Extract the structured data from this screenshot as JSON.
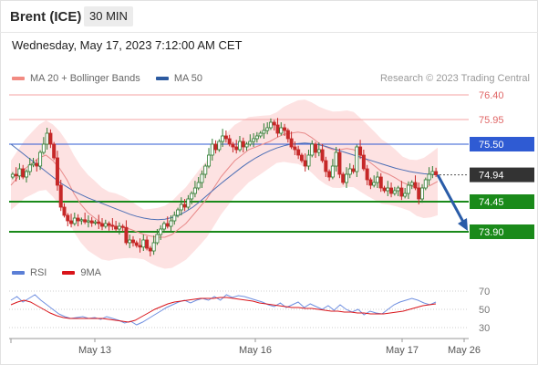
{
  "header": {
    "symbol": "Brent (ICE)",
    "timeframe": "30 MIN",
    "datetime": "Wednesday, May 17, 2023 7:12:00 AM CET"
  },
  "legend": {
    "items": [
      {
        "label": "MA 20 + Bollinger Bands",
        "color": "#f28b82"
      },
      {
        "label": "MA 50",
        "color": "#2c5aa0"
      }
    ],
    "credit": "Research © 2023 Trading Central"
  },
  "rsi_legend": {
    "items": [
      {
        "label": "RSI",
        "color": "#5b7fd6"
      },
      {
        "label": "9MA",
        "color": "#d9141a"
      }
    ]
  },
  "colors": {
    "up": "#2e7d32",
    "down": "#c62828",
    "band": "#fde2e2",
    "resistance": "#f4a3a3",
    "pivot": "#2f5bd3",
    "support": "#1a8a1a",
    "last": "#333333",
    "arrow": "#2a5ca8"
  },
  "chart_data": [
    {
      "type": "candlestick",
      "title": "Brent (ICE)",
      "interval": "30 MIN",
      "y_scale": {
        "min": 73.6,
        "max": 76.55
      },
      "x_ticks": [
        "May 13",
        "May 16",
        "May 17",
        "May 26"
      ],
      "levels": [
        {
          "value": 76.4,
          "label": "76.40",
          "kind": "resistance"
        },
        {
          "value": 75.95,
          "label": "75.95",
          "kind": "resistance"
        },
        {
          "value": 75.5,
          "label": "75.50",
          "kind": "pivot"
        },
        {
          "value": 74.94,
          "label": "74.94",
          "kind": "last"
        },
        {
          "value": 74.45,
          "label": "74.45",
          "kind": "support"
        },
        {
          "value": 73.9,
          "label": "73.90",
          "kind": "support"
        }
      ],
      "forecast": {
        "from": 74.94,
        "to": 73.9
      },
      "series": [
        {
          "name": "Brent (ICE)",
          "closes": [
            74.95,
            74.92,
            75.05,
            74.9,
            75.0,
            75.12,
            75.15,
            75.1,
            75.35,
            75.5,
            75.7,
            75.5,
            75.25,
            74.75,
            74.35,
            74.2,
            74.1,
            74.05,
            74.15,
            74.1,
            74.12,
            74.08,
            74.1,
            74.06,
            74.08,
            74.05,
            74.0,
            74.05,
            74.02,
            74.0,
            73.95,
            74.0,
            73.98,
            73.7,
            73.75,
            73.7,
            73.65,
            73.62,
            73.75,
            73.6,
            73.55,
            73.7,
            73.85,
            73.95,
            74.05,
            74.0,
            74.1,
            74.2,
            74.3,
            74.4,
            74.35,
            74.5,
            74.6,
            74.7,
            74.8,
            74.95,
            75.1,
            75.3,
            75.5,
            75.4,
            75.55,
            75.65,
            75.6,
            75.5,
            75.45,
            75.4,
            75.55,
            75.45,
            75.5,
            75.55,
            75.6,
            75.65,
            75.7,
            75.75,
            75.8,
            75.9,
            75.85,
            75.7,
            75.8,
            75.75,
            75.6,
            75.45,
            75.4,
            75.3,
            75.2,
            75.1,
            75.3,
            75.5,
            75.35,
            75.4,
            75.2,
            75.0,
            74.9,
            75.1,
            75.35,
            74.95,
            74.8,
            74.95,
            75.05,
            75.0,
            75.45,
            75.3,
            75.05,
            74.85,
            74.75,
            74.8,
            74.9,
            74.7,
            74.65,
            74.7,
            74.6,
            74.65,
            74.7,
            74.55,
            74.6,
            74.75,
            74.8,
            74.7,
            74.5,
            74.7,
            74.85,
            74.95,
            75.0,
            74.94
          ]
        },
        {
          "name": "MA 20",
          "values": [
            74.75,
            74.9,
            75.05,
            75.15,
            75.25,
            75.3,
            75.2,
            75.05,
            74.85,
            74.6,
            74.4,
            74.25,
            74.15,
            74.05,
            74.0,
            74.0,
            73.98,
            73.95,
            73.9,
            73.85,
            73.82,
            73.8,
            73.8,
            73.85,
            73.95,
            74.05,
            74.2,
            74.35,
            74.5,
            74.7,
            74.9,
            75.05,
            75.2,
            75.3,
            75.4,
            75.45,
            75.5,
            75.55,
            75.62,
            75.68,
            75.7,
            75.72,
            75.7,
            75.62,
            75.52,
            75.45,
            75.4,
            75.4,
            75.42,
            75.4,
            75.3,
            75.2,
            75.1,
            75.0,
            74.95,
            74.88,
            74.8,
            74.75,
            74.7,
            74.7,
            74.75,
            74.82
          ]
        },
        {
          "name": "MA 50",
          "values": [
            75.5,
            75.4,
            75.3,
            75.2,
            75.1,
            75.0,
            74.9,
            74.8,
            74.72,
            74.64,
            74.58,
            74.52,
            74.47,
            74.42,
            74.37,
            74.32,
            74.27,
            74.22,
            74.18,
            74.15,
            74.13,
            74.12,
            74.13,
            74.16,
            74.2,
            74.27,
            74.35,
            74.45,
            74.56,
            74.67,
            74.78,
            74.88,
            74.98,
            75.08,
            75.17,
            75.25,
            75.32,
            75.38,
            75.43,
            75.47,
            75.5,
            75.51,
            75.52,
            75.51,
            75.49,
            75.46,
            75.42,
            75.38,
            75.34,
            75.3,
            75.26,
            75.22,
            75.18,
            75.14,
            75.1,
            75.06,
            75.03,
            75.0,
            74.98,
            74.96,
            74.95,
            74.94
          ]
        }
      ]
    },
    {
      "type": "line",
      "title": "RSI",
      "y_ticks": [
        70,
        50,
        30
      ],
      "ylim": [
        25,
        75
      ],
      "series": [
        {
          "name": "RSI",
          "values": [
            60,
            64,
            58,
            62,
            66,
            60,
            55,
            50,
            45,
            42,
            40,
            41,
            42,
            40,
            41,
            39,
            42,
            40,
            38,
            35,
            37,
            33,
            36,
            40,
            44,
            48,
            52,
            55,
            58,
            60,
            57,
            60,
            62,
            60,
            64,
            60,
            66,
            63,
            65,
            64,
            62,
            60,
            58,
            55,
            53,
            57,
            52,
            55,
            58,
            52,
            56,
            53,
            50,
            54,
            49,
            55,
            50,
            47,
            50,
            44,
            48,
            46,
            45,
            50,
            55,
            58,
            60,
            62,
            60,
            57,
            55,
            58
          ]
        },
        {
          "name": "9MA",
          "values": [
            55,
            58,
            60,
            58,
            54,
            50,
            46,
            43,
            41,
            40,
            40,
            40,
            40,
            40,
            40,
            39,
            38,
            37,
            36,
            38,
            42,
            46,
            50,
            53,
            56,
            58,
            59,
            60,
            61,
            62,
            62,
            62,
            63,
            63,
            62,
            61,
            60,
            59,
            57,
            56,
            55,
            54,
            53,
            52,
            52,
            51,
            51,
            50,
            49,
            48,
            48,
            47,
            47,
            46,
            46,
            45,
            45,
            45,
            46,
            47,
            48,
            50,
            52,
            54,
            55,
            56
          ]
        }
      ]
    }
  ]
}
